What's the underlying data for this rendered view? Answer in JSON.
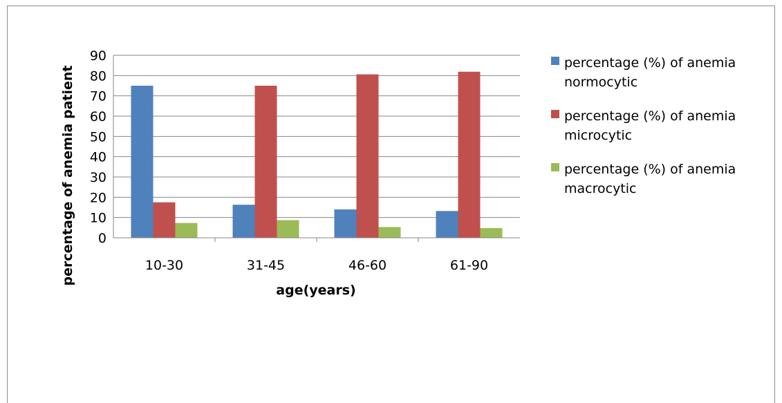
{
  "chart_data": {
    "type": "bar",
    "categories": [
      "10-30",
      "31-45",
      "46-60",
      "61-90"
    ],
    "series": [
      {
        "name": "percentage (%) of anemia normocytic",
        "name_lines": [
          "percentage (%) of anemia",
          "normocytic"
        ],
        "color": "#4f81bd",
        "values": [
          75,
          16.3,
          14,
          13.2
        ]
      },
      {
        "name": "percentage (%) of anemia microcytic",
        "name_lines": [
          "percentage (%) of anemia",
          "microcytic"
        ],
        "color": "#c0504d",
        "values": [
          17.5,
          75,
          80.6,
          81.9
        ]
      },
      {
        "name": "percentage (%) of anemia macrocytic",
        "name_lines": [
          "percentage (%) of anemia",
          "macrocytic"
        ],
        "color": "#9bbb59",
        "values": [
          7.3,
          8.7,
          5.3,
          4.8
        ]
      }
    ],
    "xlabel": "age(years)",
    "ylabel": "percentage of anemia patient",
    "ylim": [
      0,
      90
    ],
    "yticks": [
      0,
      10,
      20,
      30,
      40,
      50,
      60,
      70,
      80,
      90
    ],
    "grid": "horizontal",
    "legend": "right"
  }
}
